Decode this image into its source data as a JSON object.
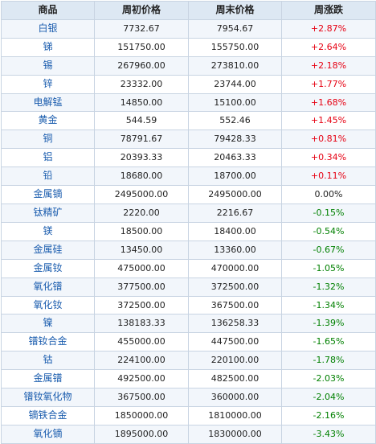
{
  "table": {
    "headers": [
      "商品",
      "周初价格",
      "周末价格",
      "周涨跌"
    ],
    "colors": {
      "up": "#e60012",
      "down": "#008000",
      "name": "#1a5cae",
      "header_bg": "#dde8f3"
    },
    "rows": [
      {
        "name": "白银",
        "start": "7732.67",
        "end": "7954.67",
        "change": "+2.87%",
        "dir": "up"
      },
      {
        "name": "锑",
        "start": "151750.00",
        "end": "155750.00",
        "change": "+2.64%",
        "dir": "up"
      },
      {
        "name": "锡",
        "start": "267960.00",
        "end": "273810.00",
        "change": "+2.18%",
        "dir": "up"
      },
      {
        "name": "锌",
        "start": "23332.00",
        "end": "23744.00",
        "change": "+1.77%",
        "dir": "up"
      },
      {
        "name": "电解锰",
        "start": "14850.00",
        "end": "15100.00",
        "change": "+1.68%",
        "dir": "up"
      },
      {
        "name": "黄金",
        "start": "544.59",
        "end": "552.46",
        "change": "+1.45%",
        "dir": "up"
      },
      {
        "name": "铜",
        "start": "78791.67",
        "end": "79428.33",
        "change": "+0.81%",
        "dir": "up"
      },
      {
        "name": "铝",
        "start": "20393.33",
        "end": "20463.33",
        "change": "+0.34%",
        "dir": "up"
      },
      {
        "name": "铅",
        "start": "18680.00",
        "end": "18700.00",
        "change": "+0.11%",
        "dir": "up"
      },
      {
        "name": "金属镝",
        "start": "2495000.00",
        "end": "2495000.00",
        "change": "0.00%",
        "dir": "flat"
      },
      {
        "name": "钛精矿",
        "start": "2220.00",
        "end": "2216.67",
        "change": "-0.15%",
        "dir": "down"
      },
      {
        "name": "镁",
        "start": "18500.00",
        "end": "18400.00",
        "change": "-0.54%",
        "dir": "down"
      },
      {
        "name": "金属硅",
        "start": "13450.00",
        "end": "13360.00",
        "change": "-0.67%",
        "dir": "down"
      },
      {
        "name": "金属钕",
        "start": "475000.00",
        "end": "470000.00",
        "change": "-1.05%",
        "dir": "down"
      },
      {
        "name": "氧化镨",
        "start": "377500.00",
        "end": "372500.00",
        "change": "-1.32%",
        "dir": "down"
      },
      {
        "name": "氧化钕",
        "start": "372500.00",
        "end": "367500.00",
        "change": "-1.34%",
        "dir": "down"
      },
      {
        "name": "镍",
        "start": "138183.33",
        "end": "136258.33",
        "change": "-1.39%",
        "dir": "down"
      },
      {
        "name": "镨钕合金",
        "start": "455000.00",
        "end": "447500.00",
        "change": "-1.65%",
        "dir": "down"
      },
      {
        "name": "钴",
        "start": "224100.00",
        "end": "220100.00",
        "change": "-1.78%",
        "dir": "down"
      },
      {
        "name": "金属镨",
        "start": "492500.00",
        "end": "482500.00",
        "change": "-2.03%",
        "dir": "down"
      },
      {
        "name": "镨钕氧化物",
        "start": "367500.00",
        "end": "360000.00",
        "change": "-2.04%",
        "dir": "down"
      },
      {
        "name": "镝铁合金",
        "start": "1850000.00",
        "end": "1810000.00",
        "change": "-2.16%",
        "dir": "down"
      },
      {
        "name": "氧化镝",
        "start": "1895000.00",
        "end": "1830000.00",
        "change": "-3.43%",
        "dir": "down"
      }
    ]
  }
}
